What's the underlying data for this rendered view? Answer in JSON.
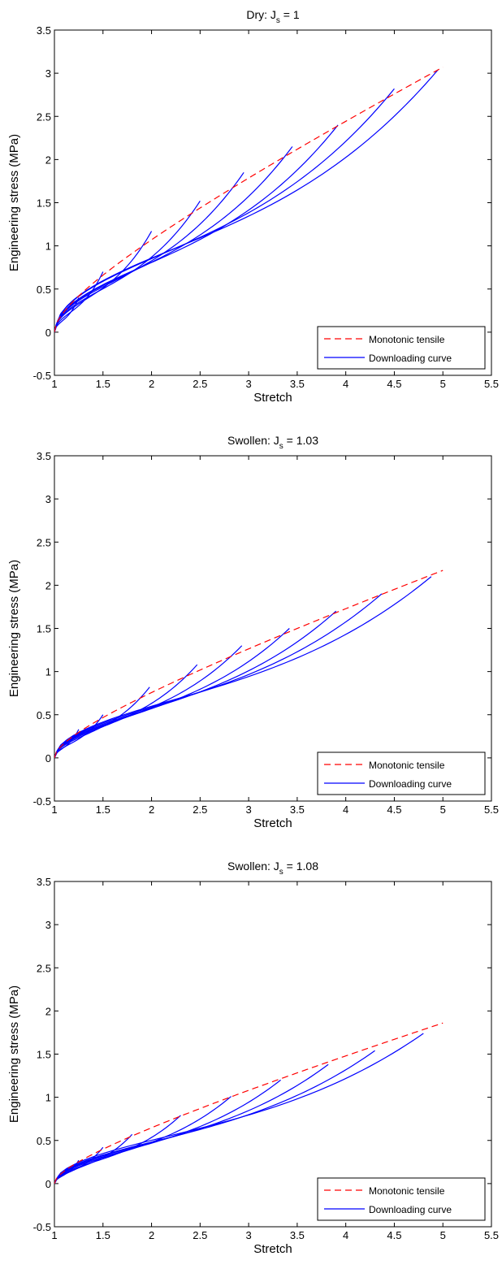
{
  "chart_data": [
    {
      "type": "line",
      "title": {
        "main": "Dry: J",
        "sub": "s",
        "value": " = 1"
      },
      "xlabel": "Stretch",
      "ylabel": "Engineering stress (MPa)",
      "xlim": [
        1,
        5.5
      ],
      "ylim": [
        -0.5,
        3.5
      ],
      "xticks": [
        1,
        1.5,
        2,
        2.5,
        3,
        3.5,
        4,
        4.5,
        5,
        5.5
      ],
      "yticks": [
        -0.5,
        0,
        0.5,
        1,
        1.5,
        2,
        2.5,
        3,
        3.5
      ],
      "grid": false,
      "legend": {
        "position": "bottom-right",
        "entries": [
          "Monotonic tensile",
          "Downloading curve"
        ]
      },
      "monotonic": {
        "name": "Monotonic tensile",
        "color": "#ff0000",
        "style": "dashed",
        "A": 1.12,
        "B": 0.43
      },
      "unloading": {
        "name": "Downloading curve",
        "color": "#0000ff",
        "style": "solid",
        "shape": 1.8,
        "peaks": [
          {
            "x": 1.25,
            "y": 0.4
          },
          {
            "x": 1.5,
            "y": 0.7
          },
          {
            "x": 2.0,
            "y": 1.17
          },
          {
            "x": 2.5,
            "y": 1.52
          },
          {
            "x": 2.95,
            "y": 1.85
          },
          {
            "x": 3.45,
            "y": 2.15
          },
          {
            "x": 3.92,
            "y": 2.4
          },
          {
            "x": 4.5,
            "y": 2.82
          },
          {
            "x": 4.95,
            "y": 3.04
          }
        ]
      }
    },
    {
      "type": "line",
      "title": {
        "main": "Swollen: J",
        "sub": "s",
        "value": " = 1.03"
      },
      "xlabel": "Stretch",
      "ylabel": "Engineering stress (MPa)",
      "xlim": [
        1,
        5.5
      ],
      "ylim": [
        -0.5,
        3.5
      ],
      "xticks": [
        1,
        1.5,
        2,
        2.5,
        3,
        3.5,
        4,
        4.5,
        5,
        5.5
      ],
      "yticks": [
        -0.5,
        0,
        0.5,
        1,
        1.5,
        2,
        2.5,
        3,
        3.5
      ],
      "grid": false,
      "legend": {
        "position": "bottom-right",
        "entries": [
          "Monotonic tensile",
          "Downloading curve"
        ]
      },
      "monotonic": {
        "name": "Monotonic tensile",
        "color": "#ff0000",
        "style": "dashed",
        "A": 0.78,
        "B": 0.3
      },
      "unloading": {
        "name": "Downloading curve",
        "color": "#0000ff",
        "style": "solid",
        "shape": 1.3,
        "peaks": [
          {
            "x": 1.25,
            "y": 0.33
          },
          {
            "x": 1.5,
            "y": 0.5
          },
          {
            "x": 1.98,
            "y": 0.82
          },
          {
            "x": 2.47,
            "y": 1.08
          },
          {
            "x": 2.93,
            "y": 1.3
          },
          {
            "x": 3.42,
            "y": 1.5
          },
          {
            "x": 3.9,
            "y": 1.7
          },
          {
            "x": 4.37,
            "y": 1.9
          },
          {
            "x": 4.88,
            "y": 2.1
          }
        ]
      }
    },
    {
      "type": "line",
      "title": {
        "main": "Swollen: J",
        "sub": "s",
        "value": " = 1.08"
      },
      "xlabel": "Stretch",
      "ylabel": "Engineering stress (MPa)",
      "xlim": [
        1,
        5.5
      ],
      "ylim": [
        -0.5,
        3.5
      ],
      "xticks": [
        1,
        1.5,
        2,
        2.5,
        3,
        3.5,
        4,
        4.5,
        5,
        5.5
      ],
      "yticks": [
        -0.5,
        0,
        0.5,
        1,
        1.5,
        2,
        2.5,
        3,
        3.5
      ],
      "grid": false,
      "legend": {
        "position": "bottom-right",
        "entries": [
          "Monotonic tensile",
          "Downloading curve"
        ]
      },
      "monotonic": {
        "name": "Monotonic tensile",
        "color": "#ff0000",
        "style": "dashed",
        "A": 0.64,
        "B": 0.25
      },
      "unloading": {
        "name": "Downloading curve",
        "color": "#0000ff",
        "style": "solid",
        "shape": 1.2,
        "peaks": [
          {
            "x": 1.25,
            "y": 0.27
          },
          {
            "x": 1.5,
            "y": 0.42
          },
          {
            "x": 1.8,
            "y": 0.57
          },
          {
            "x": 2.3,
            "y": 0.79
          },
          {
            "x": 2.82,
            "y": 1.01
          },
          {
            "x": 3.33,
            "y": 1.2
          },
          {
            "x": 3.82,
            "y": 1.38
          },
          {
            "x": 4.3,
            "y": 1.54
          },
          {
            "x": 4.8,
            "y": 1.74
          }
        ]
      }
    }
  ]
}
